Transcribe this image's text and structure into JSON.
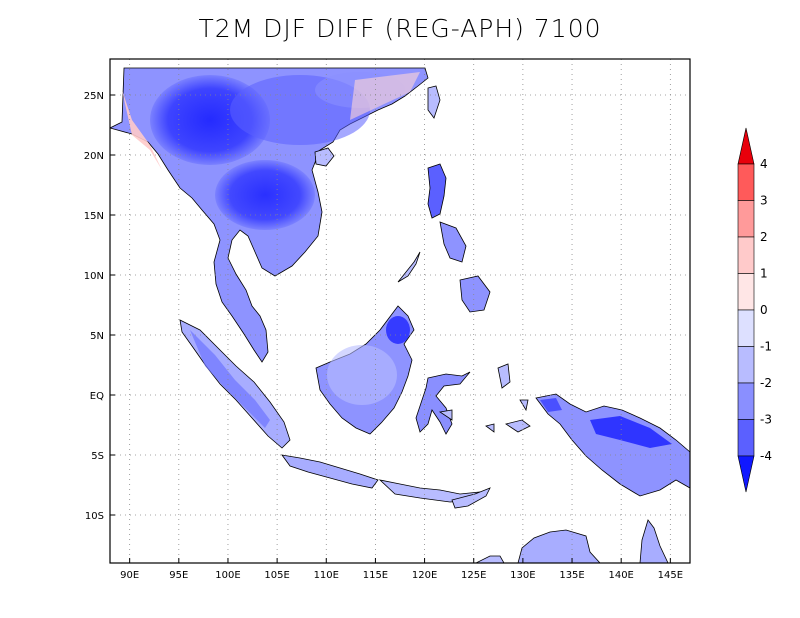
{
  "title": "T2M DJF DIFF (REG-APH) 7100",
  "map": {
    "lon_range": [
      88,
      147
    ],
    "lat_range": [
      -14,
      28
    ],
    "lon_ticks": [
      {
        "value": 90,
        "label": "90E"
      },
      {
        "value": 95,
        "label": "95E"
      },
      {
        "value": 100,
        "label": "100E"
      },
      {
        "value": 105,
        "label": "105E"
      },
      {
        "value": 110,
        "label": "110E"
      },
      {
        "value": 115,
        "label": "115E"
      },
      {
        "value": 120,
        "label": "120E"
      },
      {
        "value": 125,
        "label": "125E"
      },
      {
        "value": 130,
        "label": "130E"
      },
      {
        "value": 135,
        "label": "135E"
      },
      {
        "value": 140,
        "label": "140E"
      },
      {
        "value": 145,
        "label": "145E"
      }
    ],
    "lat_ticks": [
      {
        "value": 25,
        "label": "25N"
      },
      {
        "value": 20,
        "label": "20N"
      },
      {
        "value": 15,
        "label": "15N"
      },
      {
        "value": 10,
        "label": "10N"
      },
      {
        "value": 5,
        "label": "5N"
      },
      {
        "value": 0,
        "label": "EQ"
      },
      {
        "value": -5,
        "label": "5S"
      },
      {
        "value": -10,
        "label": "10S"
      }
    ],
    "grid": "dotted"
  },
  "colorbar": {
    "levels": [
      "4",
      "3",
      "2",
      "1",
      "0",
      "-1",
      "-2",
      "-3",
      "-4"
    ],
    "colors": [
      "#e8000b",
      "#ff5a5a",
      "#ff9a9a",
      "#ffcaca",
      "#ffe6e6",
      "#dde0ff",
      "#b8bcff",
      "#8a8fff",
      "#5b60ff",
      "#1f25ff"
    ],
    "over_color": "#e8000b",
    "under_color": "#1018ff"
  }
}
